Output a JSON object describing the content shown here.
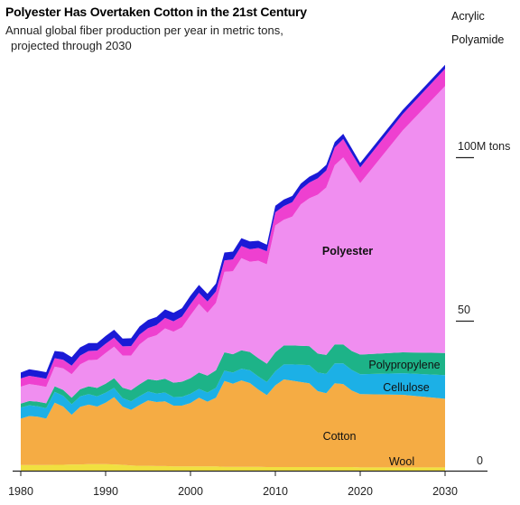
{
  "chart_data": {
    "type": "area",
    "title": "Polyester Has Overtaken Cotton in the 21st Century",
    "subtitle_line1": "Annual global fiber production per year in metric tons,",
    "subtitle_line2": "projected through 2030",
    "xlabel": "",
    "ylabel": "",
    "x": [
      1980,
      1981,
      1982,
      1983,
      1984,
      1985,
      1986,
      1987,
      1988,
      1989,
      1990,
      1991,
      1992,
      1993,
      1994,
      1995,
      1996,
      1997,
      1998,
      1999,
      2000,
      2001,
      2002,
      2003,
      2004,
      2005,
      2006,
      2007,
      2008,
      2009,
      2010,
      2011,
      2012,
      2013,
      2014,
      2015,
      2016,
      2017,
      2018,
      2019,
      2020,
      2025,
      2030
    ],
    "xlim": [
      1980,
      2030
    ],
    "ylim": [
      0,
      110
    ],
    "x_ticks": [
      "1980",
      "1990",
      "2000",
      "2010",
      "2020",
      "2030"
    ],
    "y_ticks": [
      {
        "value": 0,
        "label": "0"
      },
      {
        "value": 50,
        "label": "50"
      },
      {
        "value": 100,
        "label": "100M tons"
      }
    ],
    "series": [
      {
        "name": "Wool",
        "color": "#f0e040",
        "values": [
          1.7,
          1.7,
          1.7,
          1.7,
          1.8,
          1.8,
          1.9,
          1.9,
          2.0,
          2.0,
          2.0,
          1.9,
          1.8,
          1.6,
          1.5,
          1.5,
          1.4,
          1.4,
          1.3,
          1.3,
          1.3,
          1.3,
          1.3,
          1.3,
          1.2,
          1.2,
          1.2,
          1.2,
          1.2,
          1.1,
          1.1,
          1.1,
          1.1,
          1.1,
          1.1,
          1.1,
          1.1,
          1.1,
          1.1,
          1.1,
          1.0,
          1.0,
          1.0
        ]
      },
      {
        "name": "Cotton",
        "color": "#f5ac44",
        "values": [
          14.2,
          15.0,
          14.8,
          14.2,
          19.0,
          17.8,
          15.2,
          17.6,
          18.2,
          17.6,
          18.8,
          20.6,
          17.8,
          17.0,
          18.6,
          20.0,
          19.6,
          19.8,
          18.6,
          18.6,
          19.4,
          21.0,
          19.8,
          21.0,
          26.2,
          25.4,
          26.4,
          25.6,
          23.6,
          22.0,
          25.0,
          26.8,
          26.4,
          26.0,
          25.6,
          23.2,
          22.6,
          25.6,
          25.4,
          23.4,
          22.4,
          22.2,
          21.0
        ]
      },
      {
        "name": "Cellulose",
        "color": "#1cb0e6",
        "values": [
          3.4,
          3.3,
          3.2,
          3.2,
          3.3,
          3.3,
          3.2,
          3.2,
          3.2,
          3.1,
          3.0,
          2.8,
          2.6,
          2.6,
          2.7,
          2.7,
          2.6,
          2.7,
          2.6,
          2.7,
          2.8,
          2.7,
          2.8,
          3.0,
          3.2,
          3.4,
          3.6,
          3.9,
          4.0,
          4.0,
          4.3,
          4.6,
          5.0,
          5.3,
          5.6,
          5.7,
          5.9,
          6.1,
          6.3,
          6.3,
          6.1,
          6.6,
          7.2
        ]
      },
      {
        "name": "Polypropylene",
        "color": "#1db388",
        "values": [
          1.2,
          1.3,
          1.4,
          1.5,
          1.7,
          1.8,
          2.0,
          2.2,
          2.4,
          2.6,
          2.8,
          3.0,
          3.2,
          3.4,
          3.6,
          3.8,
          4.0,
          4.2,
          4.4,
          4.6,
          4.8,
          5.0,
          5.2,
          5.4,
          5.6,
          5.6,
          5.6,
          5.6,
          5.6,
          5.6,
          5.8,
          5.8,
          5.8,
          5.8,
          5.8,
          5.8,
          5.8,
          5.8,
          5.8,
          5.8,
          6.0,
          6.4,
          6.8
        ]
      },
      {
        "name": "Polyester",
        "color": "#f08ef0",
        "values": [
          5.2,
          5.2,
          5.0,
          5.0,
          6.0,
          6.6,
          7.2,
          7.6,
          8.0,
          8.6,
          9.4,
          9.6,
          9.8,
          10.6,
          12.2,
          12.6,
          13.8,
          15.4,
          15.6,
          16.6,
          19.2,
          21.0,
          19.2,
          20.6,
          24.6,
          25.4,
          28.2,
          27.6,
          29.8,
          30.4,
          38.8,
          38.4,
          39.4,
          43.2,
          45.2,
          48.6,
          51.2,
          54.8,
          57.2,
          55.2,
          52.4,
          67.8,
          81.6
        ]
      },
      {
        "name": "Polyamide",
        "color": "#ee40d0",
        "values": [
          2.5,
          2.5,
          2.5,
          2.5,
          2.6,
          2.6,
          2.6,
          2.7,
          2.8,
          2.8,
          2.8,
          2.8,
          2.8,
          2.9,
          3.0,
          3.0,
          3.1,
          3.2,
          3.2,
          3.3,
          3.4,
          3.4,
          3.4,
          3.5,
          3.5,
          3.6,
          3.7,
          3.8,
          3.9,
          4.0,
          4.0,
          4.2,
          4.4,
          4.6,
          4.8,
          5.0,
          5.2,
          5.4,
          5.6,
          5.2,
          4.8,
          5.0,
          5.3
        ]
      },
      {
        "name": "Acrylic",
        "color": "#1a1ad6",
        "values": [
          1.8,
          2.0,
          2.0,
          2.0,
          2.2,
          2.4,
          2.6,
          2.5,
          2.4,
          2.3,
          2.4,
          2.4,
          2.4,
          2.4,
          2.5,
          2.5,
          2.5,
          2.6,
          2.6,
          2.6,
          2.6,
          2.4,
          2.4,
          2.4,
          2.4,
          2.4,
          2.4,
          2.4,
          2.2,
          2.0,
          2.0,
          2.0,
          1.9,
          1.8,
          1.8,
          1.8,
          1.7,
          1.7,
          1.6,
          1.6,
          1.4,
          1.3,
          1.2
        ]
      }
    ],
    "series_labels": [
      {
        "series": "Polyester",
        "bold": true
      },
      {
        "series": "Polypropylene",
        "bold": false
      },
      {
        "series": "Cellulose",
        "bold": false
      },
      {
        "series": "Cotton",
        "bold": false
      },
      {
        "series": "Wool",
        "bold": false
      },
      {
        "series": "Polyamide",
        "bold": false
      },
      {
        "series": "Acrylic",
        "bold": false
      }
    ],
    "grid": false,
    "legend": "inline"
  }
}
